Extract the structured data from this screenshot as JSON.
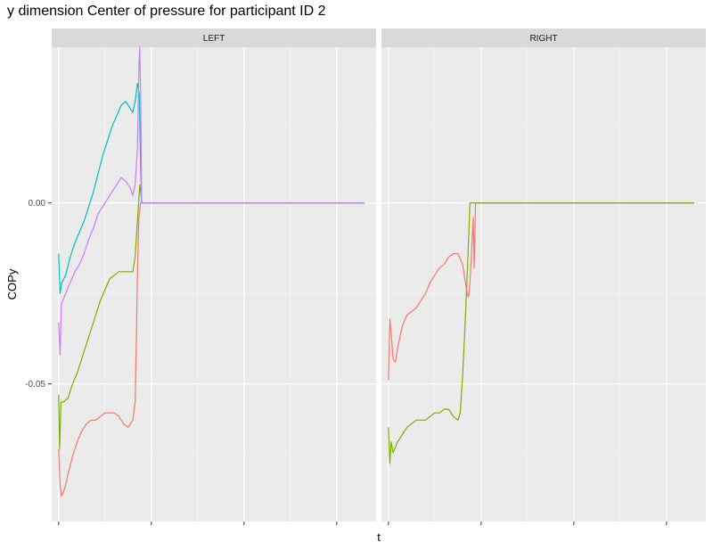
{
  "title": "y dimension Center of pressure for participant ID 2",
  "chart_data": {
    "type": "line",
    "title": "y dimension Center of pressure for participant ID 2",
    "xlabel": "t",
    "ylabel": "COPy",
    "ylim": [
      -0.088,
      0.043
    ],
    "y_ticks": [
      -0.05,
      0.0
    ],
    "y_tick_labels": [
      "-0.05",
      "0.00"
    ],
    "x_tick_labels_visible": false,
    "grid": true,
    "legend": "none",
    "panels": [
      {
        "strip": "LEFT",
        "series": [
          {
            "color": "#F8766D",
            "points": [
              [
                0,
                -0.068
              ],
              [
                0.3,
                -0.078
              ],
              [
                0.6,
                -0.081
              ],
              [
                1,
                -0.08
              ],
              [
                1.5,
                -0.078
              ],
              [
                2,
                -0.075
              ],
              [
                3,
                -0.07
              ],
              [
                4,
                -0.066
              ],
              [
                5,
                -0.063
              ],
              [
                6,
                -0.061
              ],
              [
                7,
                -0.06
              ],
              [
                8,
                -0.06
              ],
              [
                9,
                -0.059
              ],
              [
                10,
                -0.058
              ],
              [
                11,
                -0.058
              ],
              [
                12,
                -0.058
              ],
              [
                13,
                -0.059
              ],
              [
                14,
                -0.061
              ],
              [
                15,
                -0.062
              ],
              [
                16,
                -0.06
              ],
              [
                16.5,
                -0.055
              ],
              [
                16.8,
                -0.035
              ],
              [
                17,
                -0.02
              ],
              [
                17.3,
                -0.004
              ],
              [
                17.7,
                0.0
              ],
              [
                20,
                0.0
              ],
              [
                35,
                0.0
              ],
              [
                66,
                0.0
              ]
            ]
          },
          {
            "color": "#7CAE00",
            "points": [
              [
                0,
                -0.053
              ],
              [
                0.2,
                -0.068
              ],
              [
                0.5,
                -0.055
              ],
              [
                1,
                -0.055
              ],
              [
                2,
                -0.054
              ],
              [
                3,
                -0.05
              ],
              [
                4,
                -0.047
              ],
              [
                5,
                -0.043
              ],
              [
                6,
                -0.039
              ],
              [
                7,
                -0.035
              ],
              [
                8,
                -0.031
              ],
              [
                9,
                -0.027
              ],
              [
                10,
                -0.024
              ],
              [
                11,
                -0.021
              ],
              [
                12,
                -0.02
              ],
              [
                13,
                -0.019
              ],
              [
                14,
                -0.019
              ],
              [
                15,
                -0.019
              ],
              [
                16,
                -0.019
              ],
              [
                16.5,
                -0.015
              ],
              [
                17,
                -0.005
              ],
              [
                17.5,
                0.005
              ],
              [
                18,
                0.0
              ],
              [
                20,
                0.0
              ],
              [
                35,
                0.0
              ],
              [
                66,
                0.0
              ]
            ]
          },
          {
            "color": "#00BFC4",
            "points": [
              [
                0,
                -0.014
              ],
              [
                0.3,
                -0.025
              ],
              [
                0.7,
                -0.022
              ],
              [
                1.5,
                -0.02
              ],
              [
                2.5,
                -0.015
              ],
              [
                3.5,
                -0.011
              ],
              [
                4.5,
                -0.008
              ],
              [
                5.5,
                -0.005
              ],
              [
                6.5,
                -0.001
              ],
              [
                7.5,
                0.003
              ],
              [
                8.5,
                0.008
              ],
              [
                9.5,
                0.013
              ],
              [
                10.5,
                0.017
              ],
              [
                11.5,
                0.021
              ],
              [
                12.5,
                0.024
              ],
              [
                13.5,
                0.027
              ],
              [
                14.5,
                0.028
              ],
              [
                15.5,
                0.026
              ],
              [
                16,
                0.025
              ],
              [
                16.5,
                0.028
              ],
              [
                17,
                0.033
              ],
              [
                17.4,
                0.03
              ],
              [
                17.7,
                0.01
              ],
              [
                17.9,
                0.0
              ],
              [
                20,
                0.0
              ],
              [
                35,
                0.0
              ],
              [
                66,
                0.0
              ]
            ]
          },
          {
            "color": "#C77CFF",
            "points": [
              [
                0,
                -0.033
              ],
              [
                0.3,
                -0.042
              ],
              [
                0.6,
                -0.028
              ],
              [
                1.5,
                -0.025
              ],
              [
                2.5,
                -0.022
              ],
              [
                3.5,
                -0.019
              ],
              [
                4.5,
                -0.017
              ],
              [
                5.5,
                -0.014
              ],
              [
                6.5,
                -0.01
              ],
              [
                7.5,
                -0.007
              ],
              [
                8.5,
                -0.003
              ],
              [
                9.5,
                -0.001
              ],
              [
                10.5,
                0.001
              ],
              [
                11.5,
                0.003
              ],
              [
                12.5,
                0.005
              ],
              [
                13.5,
                0.007
              ],
              [
                14.5,
                0.006
              ],
              [
                15.5,
                0.004
              ],
              [
                16,
                0.002
              ],
              [
                16.5,
                0.005
              ],
              [
                17,
                0.015
              ],
              [
                17.3,
                0.037
              ],
              [
                17.5,
                0.043
              ],
              [
                17.7,
                0.03
              ],
              [
                17.9,
                0.0
              ],
              [
                20,
                0.0
              ],
              [
                35,
                0.0
              ],
              [
                66,
                0.0
              ]
            ]
          }
        ]
      },
      {
        "strip": "RIGHT",
        "series": [
          {
            "color": "#F8766D",
            "points": [
              [
                0,
                -0.049
              ],
              [
                0.3,
                -0.032
              ],
              [
                0.6,
                -0.036
              ],
              [
                1,
                -0.043
              ],
              [
                1.5,
                -0.044
              ],
              [
                2,
                -0.04
              ],
              [
                3,
                -0.034
              ],
              [
                4,
                -0.031
              ],
              [
                5,
                -0.03
              ],
              [
                6,
                -0.029
              ],
              [
                7,
                -0.027
              ],
              [
                8,
                -0.025
              ],
              [
                9,
                -0.022
              ],
              [
                10,
                -0.02
              ],
              [
                11,
                -0.018
              ],
              [
                12,
                -0.017
              ],
              [
                13,
                -0.015
              ],
              [
                14,
                -0.014
              ],
              [
                15,
                -0.014
              ],
              [
                16,
                -0.017
              ],
              [
                16.5,
                -0.021
              ],
              [
                17,
                -0.025
              ],
              [
                17.3,
                -0.026
              ],
              [
                17.6,
                -0.022
              ],
              [
                18,
                -0.012
              ],
              [
                18.3,
                -0.004
              ],
              [
                18.5,
                -0.018
              ],
              [
                18.8,
                0.0
              ],
              [
                20,
                0.0
              ],
              [
                35,
                0.0
              ],
              [
                66,
                0.0
              ]
            ]
          },
          {
            "color": "#7CAE00",
            "points": [
              [
                0,
                -0.062
              ],
              [
                0.3,
                -0.072
              ],
              [
                0.6,
                -0.066
              ],
              [
                1,
                -0.069
              ],
              [
                2,
                -0.066
              ],
              [
                3,
                -0.064
              ],
              [
                4,
                -0.062
              ],
              [
                5,
                -0.061
              ],
              [
                6,
                -0.06
              ],
              [
                7,
                -0.06
              ],
              [
                8,
                -0.06
              ],
              [
                9,
                -0.059
              ],
              [
                10,
                -0.058
              ],
              [
                11,
                -0.058
              ],
              [
                12,
                -0.057
              ],
              [
                13,
                -0.057
              ],
              [
                14,
                -0.059
              ],
              [
                15,
                -0.06
              ],
              [
                15.5,
                -0.058
              ],
              [
                16,
                -0.048
              ],
              [
                16.5,
                -0.035
              ],
              [
                17,
                -0.02
              ],
              [
                17.3,
                -0.01
              ],
              [
                17.6,
                0.0
              ],
              [
                20,
                0.0
              ],
              [
                35,
                0.0
              ],
              [
                66,
                0.0
              ]
            ]
          }
        ]
      }
    ]
  }
}
